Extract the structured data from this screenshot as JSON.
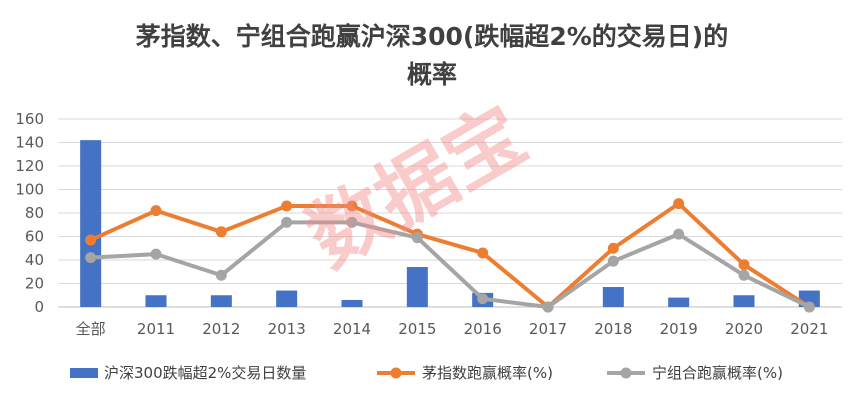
{
  "chart_data": {
    "type": "bar",
    "title_line1": "茅指数、宁组合跑赢沪深300(跌幅超2%的交易日)的",
    "title_line2": "概率",
    "categories": [
      "全部",
      "2011",
      "2012",
      "2013",
      "2014",
      "2015",
      "2016",
      "2017",
      "2018",
      "2019",
      "2020",
      "2021"
    ],
    "ylim": [
      0,
      160
    ],
    "yticks": [
      0,
      20,
      40,
      60,
      80,
      100,
      120,
      140,
      160
    ],
    "grid": true,
    "legend_position": "bottom",
    "series": [
      {
        "name": "沪深300跌幅超2%交易日数量",
        "kind": "bar",
        "color": "#4472c4",
        "values": [
          142,
          10,
          10,
          14,
          6,
          34,
          12,
          0,
          17,
          8,
          10,
          14
        ]
      },
      {
        "name": "茅指数跑赢概率(%)",
        "kind": "line",
        "color": "#ed7d31",
        "values": [
          57,
          82,
          64,
          86,
          86,
          62,
          46,
          0,
          50,
          88,
          36,
          0
        ]
      },
      {
        "name": "宁组合跑赢概率(%)",
        "kind": "line",
        "color": "#a5a5a5",
        "values": [
          42,
          45,
          27,
          72,
          72,
          59,
          7,
          0,
          39,
          62,
          27,
          0
        ]
      }
    ]
  },
  "watermark": "数据宝"
}
